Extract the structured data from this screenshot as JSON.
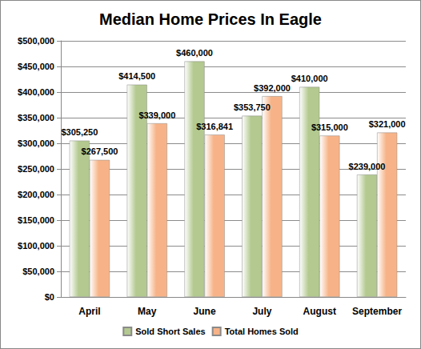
{
  "chart_data": {
    "type": "bar",
    "title": "Median Home Prices In Eagle",
    "categories": [
      "April",
      "May",
      "June",
      "July",
      "August",
      "September"
    ],
    "series": [
      {
        "name": "Sold Short Sales",
        "color": "#b3c98f",
        "values": [
          305250,
          414500,
          460000,
          353750,
          410000,
          239000
        ],
        "value_labels": [
          "$305,250",
          "$414,500",
          "$460,000",
          "$353,750",
          "$410,000",
          "$239,000"
        ]
      },
      {
        "name": "Total Homes Sold",
        "color": "#f7b387",
        "values": [
          267500,
          339000,
          316841,
          392000,
          315000,
          321000
        ],
        "value_labels": [
          "$267,500",
          "$339,000",
          "$316,841",
          "$392,000",
          "$315,000",
          "$321,000"
        ]
      }
    ],
    "ylim": [
      0,
      500000
    ],
    "yticks": [
      {
        "value": 0,
        "label": "$0"
      },
      {
        "value": 50000,
        "label": "$50,000"
      },
      {
        "value": 100000,
        "label": "$100,000"
      },
      {
        "value": 150000,
        "label": "$150,000"
      },
      {
        "value": 200000,
        "label": "$200,000"
      },
      {
        "value": 250000,
        "label": "$250,000"
      },
      {
        "value": 300000,
        "label": "$300,000"
      },
      {
        "value": 350000,
        "label": "$350,000"
      },
      {
        "value": 400000,
        "label": "$400,000"
      },
      {
        "value": 450000,
        "label": "$450,000"
      },
      {
        "value": 500000,
        "label": "$500,000"
      }
    ],
    "grid": true,
    "legend": "bottom",
    "data_labels": true
  }
}
